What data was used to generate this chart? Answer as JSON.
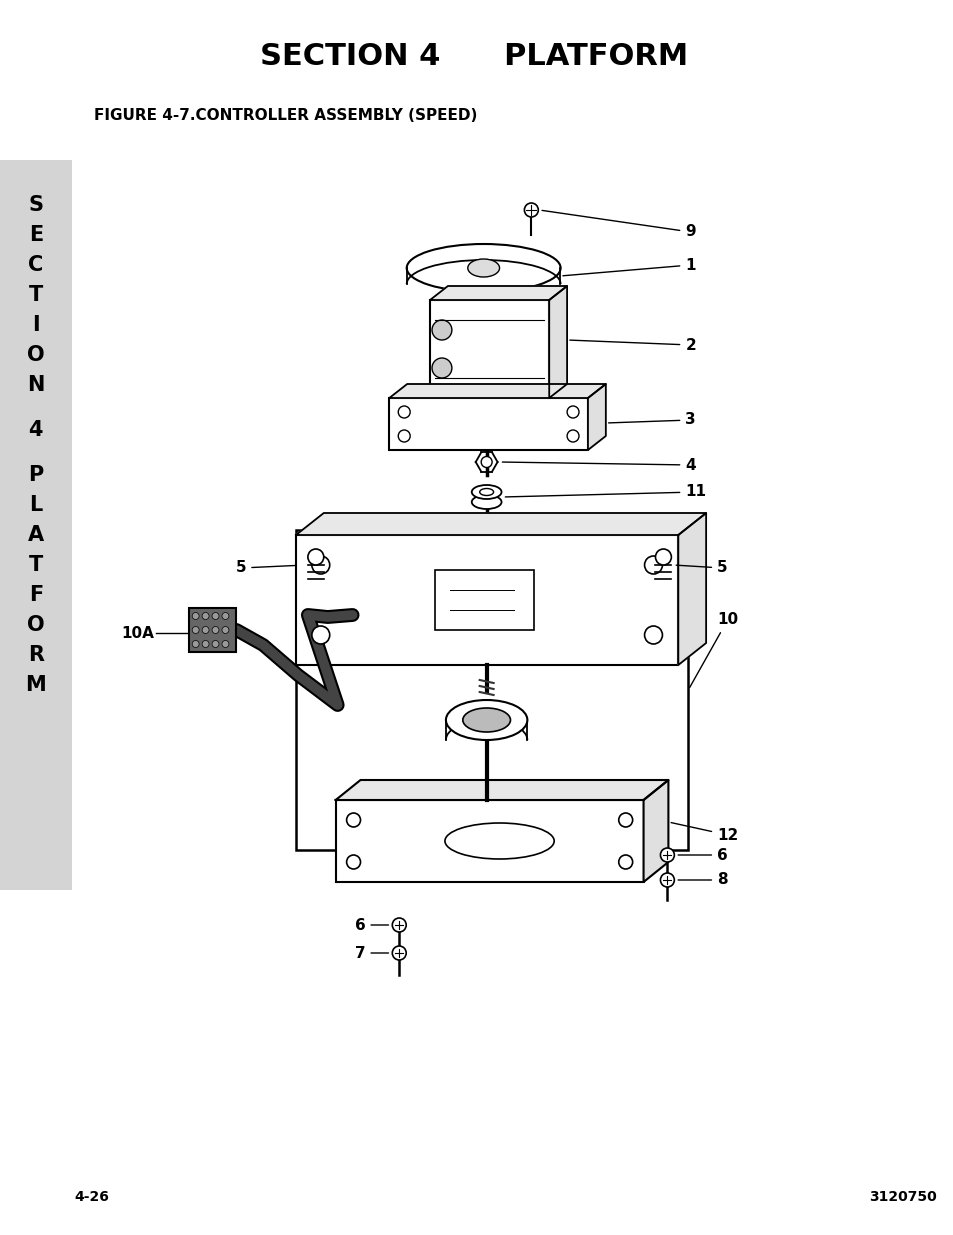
{
  "title": "SECTION 4      PLATFORM",
  "figure_label": "FIGURE 4-7.CONTROLLER ASSEMBLY (SPEED)",
  "page_number": "4-26",
  "doc_number": "3120750",
  "sidebar_bg": "#d4d4d4",
  "bg_color": "#ffffff",
  "title_fontsize": 22,
  "figure_label_fontsize": 11,
  "page_num_fontsize": 10,
  "sidebar_fontsize": 15
}
